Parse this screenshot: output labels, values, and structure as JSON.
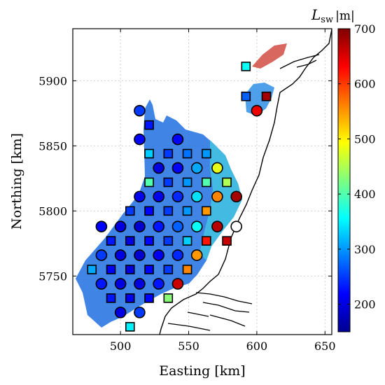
{
  "chart_data": {
    "type": "scatter",
    "xlabel": "Easting [km]",
    "ylabel": "Northing [km]",
    "xlim": [
      465,
      655
    ],
    "ylim": [
      5705,
      5940
    ],
    "xticks": [
      500,
      550,
      600,
      650
    ],
    "yticks": [
      5750,
      5800,
      5850,
      5900
    ],
    "grid": true,
    "colorbar": {
      "quantity": "L",
      "subscript": "sw",
      "unit": "|m|",
      "range": [
        150,
        700
      ],
      "ticks": [
        200,
        300,
        400,
        500,
        600,
        700
      ]
    },
    "circles": [
      {
        "x": 514,
        "y": 5877,
        "value": 250
      },
      {
        "x": 514,
        "y": 5855,
        "value": 220
      },
      {
        "x": 542,
        "y": 5855,
        "value": 220
      },
      {
        "x": 528,
        "y": 5833,
        "value": 200
      },
      {
        "x": 556,
        "y": 5833,
        "value": 310
      },
      {
        "x": 571,
        "y": 5833,
        "value": 480
      },
      {
        "x": 514,
        "y": 5811,
        "value": 210
      },
      {
        "x": 542,
        "y": 5811,
        "value": 240
      },
      {
        "x": 556,
        "y": 5811,
        "value": 340
      },
      {
        "x": 571,
        "y": 5811,
        "value": 560
      },
      {
        "x": 585,
        "y": 5811,
        "value": 680
      },
      {
        "x": 486,
        "y": 5788,
        "value": 220
      },
      {
        "x": 500,
        "y": 5788,
        "value": 200
      },
      {
        "x": 514,
        "y": 5788,
        "value": 190
      },
      {
        "x": 528,
        "y": 5788,
        "value": 230
      },
      {
        "x": 542,
        "y": 5788,
        "value": 270
      },
      {
        "x": 556,
        "y": 5788,
        "value": 360
      },
      {
        "x": 571,
        "y": 5788,
        "value": 670
      },
      {
        "x": 585,
        "y": 5788,
        "value": 130
      },
      {
        "x": 500,
        "y": 5766,
        "value": 200
      },
      {
        "x": 514,
        "y": 5766,
        "value": 190
      },
      {
        "x": 528,
        "y": 5766,
        "value": 210
      },
      {
        "x": 542,
        "y": 5766,
        "value": 240
      },
      {
        "x": 556,
        "y": 5766,
        "value": 550
      },
      {
        "x": 486,
        "y": 5744,
        "value": 230
      },
      {
        "x": 500,
        "y": 5744,
        "value": 200
      },
      {
        "x": 514,
        "y": 5744,
        "value": 200
      },
      {
        "x": 528,
        "y": 5744,
        "value": 230
      },
      {
        "x": 542,
        "y": 5744,
        "value": 660
      },
      {
        "x": 500,
        "y": 5722,
        "value": 200
      },
      {
        "x": 514,
        "y": 5722,
        "value": 250
      },
      {
        "x": 600,
        "y": 5877,
        "value": 640
      },
      {
        "x": 486,
        "y": 5766,
        "value": 250
      },
      {
        "x": 528,
        "y": 5811,
        "value": 210
      },
      {
        "x": 542,
        "y": 5833,
        "value": 220
      }
    ],
    "squares": [
      {
        "x": 521,
        "y": 5866,
        "value": 230
      },
      {
        "x": 521,
        "y": 5844,
        "value": 330
      },
      {
        "x": 535,
        "y": 5844,
        "value": 250
      },
      {
        "x": 549,
        "y": 5844,
        "value": 280
      },
      {
        "x": 563,
        "y": 5844,
        "value": 300
      },
      {
        "x": 521,
        "y": 5822,
        "value": 400
      },
      {
        "x": 535,
        "y": 5822,
        "value": 250
      },
      {
        "x": 549,
        "y": 5822,
        "value": 300
      },
      {
        "x": 563,
        "y": 5822,
        "value": 400
      },
      {
        "x": 578,
        "y": 5822,
        "value": 450
      },
      {
        "x": 507,
        "y": 5800,
        "value": 250
      },
      {
        "x": 521,
        "y": 5800,
        "value": 220
      },
      {
        "x": 535,
        "y": 5800,
        "value": 250
      },
      {
        "x": 549,
        "y": 5800,
        "value": 300
      },
      {
        "x": 563,
        "y": 5800,
        "value": 550
      },
      {
        "x": 493,
        "y": 5777,
        "value": 230
      },
      {
        "x": 507,
        "y": 5777,
        "value": 200
      },
      {
        "x": 521,
        "y": 5777,
        "value": 220
      },
      {
        "x": 535,
        "y": 5777,
        "value": 250
      },
      {
        "x": 549,
        "y": 5777,
        "value": 330
      },
      {
        "x": 563,
        "y": 5777,
        "value": 620
      },
      {
        "x": 578,
        "y": 5777,
        "value": 660
      },
      {
        "x": 479,
        "y": 5755,
        "value": 310
      },
      {
        "x": 493,
        "y": 5755,
        "value": 220
      },
      {
        "x": 507,
        "y": 5755,
        "value": 200
      },
      {
        "x": 521,
        "y": 5755,
        "value": 220
      },
      {
        "x": 535,
        "y": 5755,
        "value": 250
      },
      {
        "x": 549,
        "y": 5755,
        "value": 560
      },
      {
        "x": 493,
        "y": 5733,
        "value": 230
      },
      {
        "x": 507,
        "y": 5733,
        "value": 210
      },
      {
        "x": 521,
        "y": 5733,
        "value": 220
      },
      {
        "x": 535,
        "y": 5733,
        "value": 430
      },
      {
        "x": 507,
        "y": 5711,
        "value": 350
      },
      {
        "x": 592,
        "y": 5911,
        "value": 360
      },
      {
        "x": 592,
        "y": 5888,
        "value": 270
      },
      {
        "x": 607,
        "y": 5888,
        "value": 680
      }
    ]
  }
}
